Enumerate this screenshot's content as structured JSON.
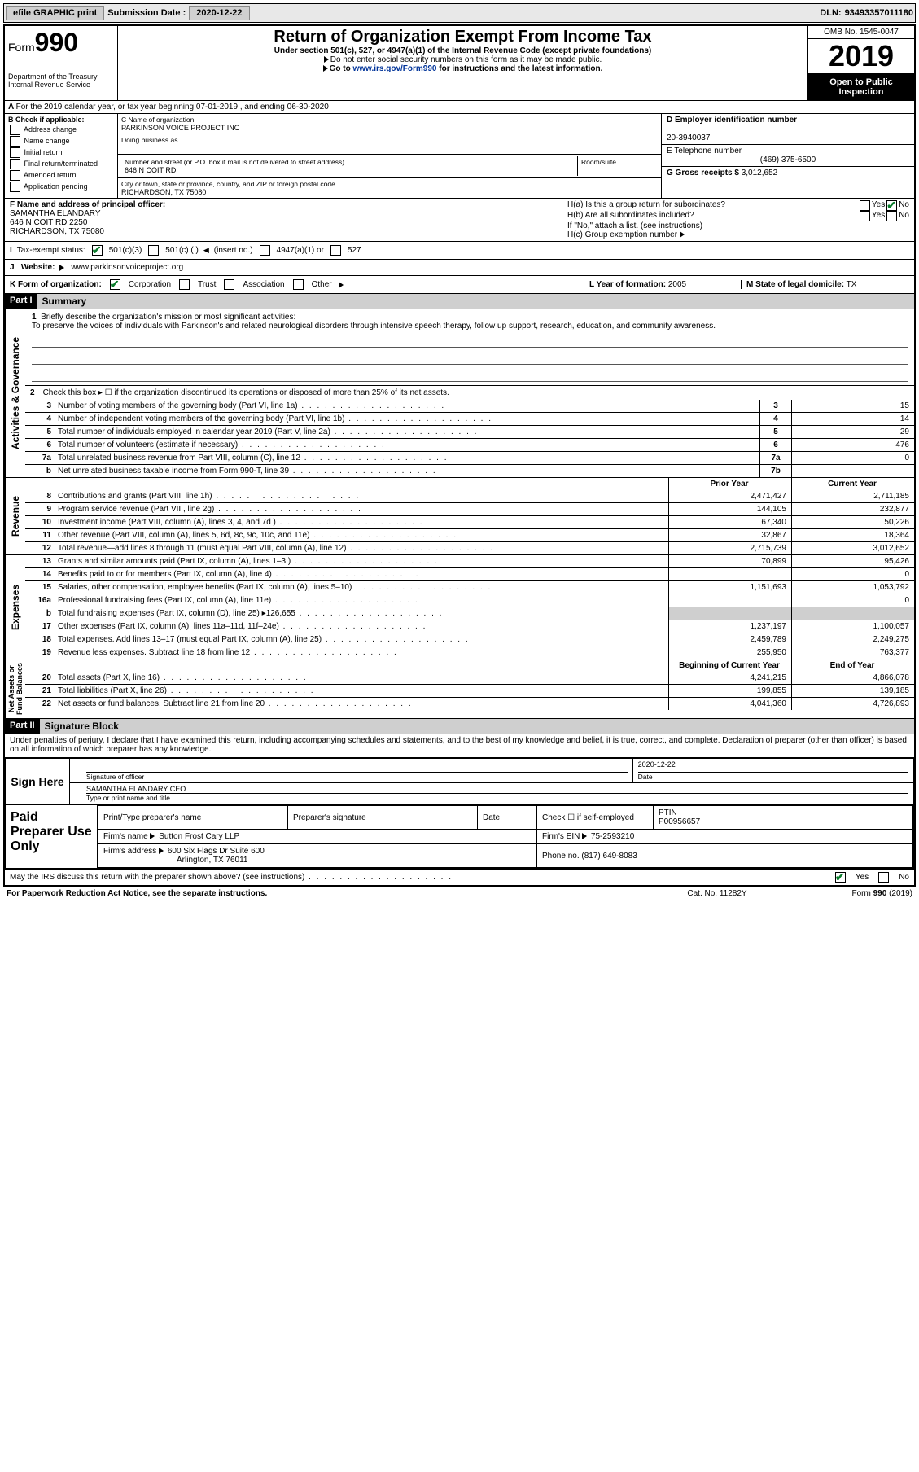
{
  "topbar": {
    "efile": "efile GRAPHIC print",
    "sub_label": "Submission Date :",
    "sub_date": "2020-12-22",
    "dln_label": "DLN:",
    "dln": "93493357011180"
  },
  "header": {
    "form_word": "Form",
    "form_num": "990",
    "dept": "Department of the Treasury\nInternal Revenue Service",
    "title": "Return of Organization Exempt From Income Tax",
    "sub1": "Under section 501(c), 527, or 4947(a)(1) of the Internal Revenue Code (except private foundations)",
    "sub2": "Do not enter social security numbers on this form as it may be made public.",
    "sub3_pre": "Go to ",
    "sub3_link": "www.irs.gov/Form990",
    "sub3_post": " for instructions and the latest information.",
    "omb": "OMB No. 1545-0047",
    "year": "2019",
    "inspect": "Open to Public Inspection"
  },
  "rowA": "For the 2019 calendar year, or tax year beginning 07-01-2019     , and ending 06-30-2020",
  "boxB": {
    "label": "B Check if applicable:",
    "opts": [
      "Address change",
      "Name change",
      "Initial return",
      "Final return/terminated",
      "Amended return",
      "Application pending"
    ]
  },
  "boxC": {
    "name_label": "C Name of organization",
    "name": "PARKINSON VOICE PROJECT INC",
    "dba_label": "Doing business as",
    "street_label": "Number and street (or P.O. box if mail is not delivered to street address)",
    "room_label": "Room/suite",
    "street": "646 N COIT RD",
    "city_label": "City or town, state or province, country, and ZIP or foreign postal code",
    "city": "RICHARDSON, TX  75080"
  },
  "boxD": {
    "label": "D Employer identification number",
    "val": "20-3940037"
  },
  "boxE": {
    "label": "E Telephone number",
    "val": "(469) 375-6500"
  },
  "boxG": {
    "label": "G Gross receipts $",
    "val": "3,012,652"
  },
  "boxF": {
    "label": "F  Name and address of principal officer:",
    "name": "SAMANTHA ELANDARY",
    "addr1": "646 N COIT RD 2250",
    "addr2": "RICHARDSON, TX  75080"
  },
  "boxH": {
    "ha": "H(a)  Is this a group return for subordinates?",
    "hb": "H(b)  Are all subordinates included?",
    "hb_note": "If \"No,\" attach a list. (see instructions)",
    "hc": "H(c)  Group exemption number",
    "yes": "Yes",
    "no": "No"
  },
  "rowI": {
    "label": "Tax-exempt status:",
    "o1": "501(c)(3)",
    "o2": "501(c) (   )",
    "o2b": "(insert no.)",
    "o3": "4947(a)(1) or",
    "o4": "527"
  },
  "rowJ": {
    "label": "Website:",
    "val": "www.parkinsonvoiceproject.org"
  },
  "rowK": {
    "label": "K Form of organization:",
    "o1": "Corporation",
    "o2": "Trust",
    "o3": "Association",
    "o4": "Other",
    "l_label": "L Year of formation:",
    "l_val": "2005",
    "m_label": "M State of legal domicile:",
    "m_val": "TX"
  },
  "partI": {
    "tag": "Part I",
    "title": "Summary"
  },
  "mission": {
    "num": "1",
    "label": "Briefly describe the organization's mission or most significant activities:",
    "text": "To preserve the voices of individuals with Parkinson's and related neurological disorders through intensive speech therapy, follow up support, research, education, and community awareness."
  },
  "line2": "Check this box ▸ ☐  if the organization discontinued its operations or disposed of more than 25% of its net assets.",
  "gov_rows": [
    {
      "n": "3",
      "d": "Number of voting members of the governing body (Part VI, line 1a)",
      "b": "3",
      "v": "15"
    },
    {
      "n": "4",
      "d": "Number of independent voting members of the governing body (Part VI, line 1b)",
      "b": "4",
      "v": "14"
    },
    {
      "n": "5",
      "d": "Total number of individuals employed in calendar year 2019 (Part V, line 2a)",
      "b": "5",
      "v": "29"
    },
    {
      "n": "6",
      "d": "Total number of volunteers (estimate if necessary)",
      "b": "6",
      "v": "476"
    },
    {
      "n": "7a",
      "d": "Total unrelated business revenue from Part VIII, column (C), line 12",
      "b": "7a",
      "v": "0"
    },
    {
      "n": "b",
      "d": "Net unrelated business taxable income from Form 990-T, line 39",
      "b": "7b",
      "v": ""
    }
  ],
  "rev_hdr": {
    "py": "Prior Year",
    "cy": "Current Year"
  },
  "rev_rows": [
    {
      "n": "8",
      "d": "Contributions and grants (Part VIII, line 1h)",
      "py": "2,471,427",
      "cy": "2,711,185"
    },
    {
      "n": "9",
      "d": "Program service revenue (Part VIII, line 2g)",
      "py": "144,105",
      "cy": "232,877"
    },
    {
      "n": "10",
      "d": "Investment income (Part VIII, column (A), lines 3, 4, and 7d )",
      "py": "67,340",
      "cy": "50,226"
    },
    {
      "n": "11",
      "d": "Other revenue (Part VIII, column (A), lines 5, 6d, 8c, 9c, 10c, and 11e)",
      "py": "32,867",
      "cy": "18,364"
    },
    {
      "n": "12",
      "d": "Total revenue—add lines 8 through 11 (must equal Part VIII, column (A), line 12)",
      "py": "2,715,739",
      "cy": "3,012,652"
    }
  ],
  "exp_rows": [
    {
      "n": "13",
      "d": "Grants and similar amounts paid (Part IX, column (A), lines 1–3 )",
      "py": "70,899",
      "cy": "95,426"
    },
    {
      "n": "14",
      "d": "Benefits paid to or for members (Part IX, column (A), line 4)",
      "py": "",
      "cy": "0"
    },
    {
      "n": "15",
      "d": "Salaries, other compensation, employee benefits (Part IX, column (A), lines 5–10)",
      "py": "1,151,693",
      "cy": "1,053,792"
    },
    {
      "n": "16a",
      "d": "Professional fundraising fees (Part IX, column (A), line 11e)",
      "py": "",
      "cy": "0"
    },
    {
      "n": "b",
      "d": "Total fundraising expenses (Part IX, column (D), line 25) ▸126,655",
      "py": "SHADE",
      "cy": "SHADE"
    },
    {
      "n": "17",
      "d": "Other expenses (Part IX, column (A), lines 11a–11d, 11f–24e)",
      "py": "1,237,197",
      "cy": "1,100,057"
    },
    {
      "n": "18",
      "d": "Total expenses. Add lines 13–17 (must equal Part IX, column (A), line 25)",
      "py": "2,459,789",
      "cy": "2,249,275"
    },
    {
      "n": "19",
      "d": "Revenue less expenses. Subtract line 18 from line 12",
      "py": "255,950",
      "cy": "763,377"
    }
  ],
  "na_hdr": {
    "py": "Beginning of Current Year",
    "cy": "End of Year"
  },
  "na_rows": [
    {
      "n": "20",
      "d": "Total assets (Part X, line 16)",
      "py": "4,241,215",
      "cy": "4,866,078"
    },
    {
      "n": "21",
      "d": "Total liabilities (Part X, line 26)",
      "py": "199,855",
      "cy": "139,185"
    },
    {
      "n": "22",
      "d": "Net assets or fund balances. Subtract line 21 from line 20",
      "py": "4,041,360",
      "cy": "4,726,893"
    }
  ],
  "vlabels": {
    "gov": "Activities & Governance",
    "rev": "Revenue",
    "exp": "Expenses",
    "na": "Net Assets or\nFund Balances"
  },
  "partII": {
    "tag": "Part II",
    "title": "Signature Block"
  },
  "penalty": "Under penalties of perjury, I declare that I have examined this return, including accompanying schedules and statements, and to the best of my knowledge and belief, it is true, correct, and complete. Declaration of preparer (other than officer) is based on all information of which preparer has any knowledge.",
  "sign": {
    "here": "Sign Here",
    "sig_label": "Signature of officer",
    "date_label": "Date",
    "date": "2020-12-22",
    "name": "SAMANTHA ELANDARY CEO",
    "name_label": "Type or print name and title"
  },
  "prep": {
    "label": "Paid Preparer Use Only",
    "h1": "Print/Type preparer's name",
    "h2": "Preparer's signature",
    "h3": "Date",
    "h4": "Check ☐ if self-employed",
    "h5": "PTIN",
    "ptin": "P00956657",
    "firm_label": "Firm's name",
    "firm": "Sutton Frost Cary LLP",
    "ein_label": "Firm's EIN",
    "ein": "75-2593210",
    "addr_label": "Firm's address",
    "addr1": "600 Six Flags Dr Suite 600",
    "addr2": "Arlington, TX  76011",
    "phone_label": "Phone no.",
    "phone": "(817) 649-8083"
  },
  "discuss": {
    "q": "May the IRS discuss this return with the preparer shown above? (see instructions)",
    "yes": "Yes",
    "no": "No"
  },
  "footer": {
    "l": "For Paperwork Reduction Act Notice, see the separate instructions.",
    "m": "Cat. No. 11282Y",
    "r": "Form 990 (2019)"
  }
}
